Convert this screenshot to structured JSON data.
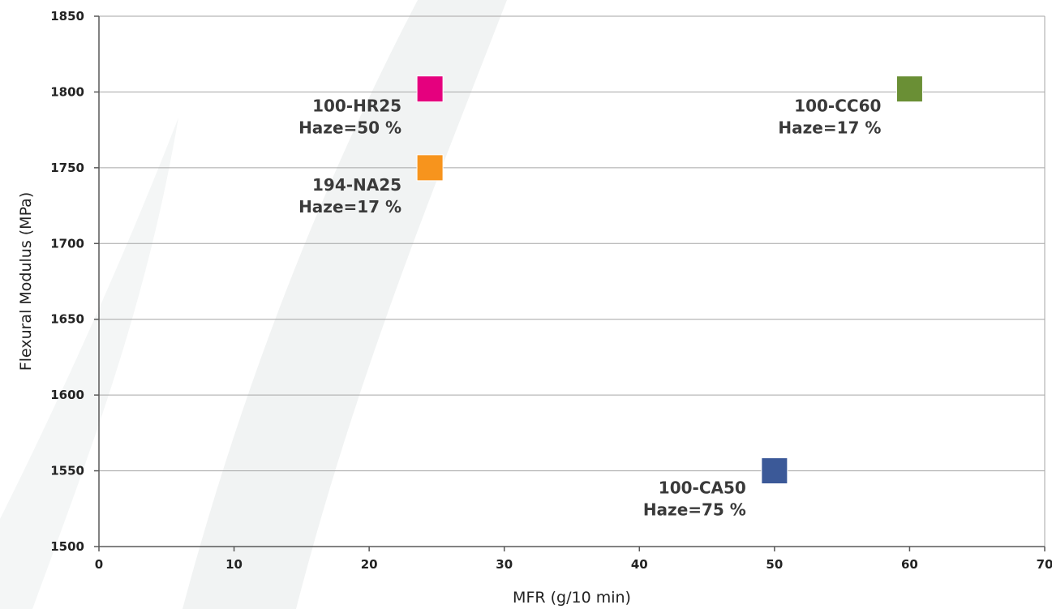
{
  "chart_data": {
    "type": "scatter",
    "title": "",
    "xlabel": "MFR (g/10 min)",
    "ylabel": "Flexural Modulus (MPa)",
    "xlim": [
      0,
      70
    ],
    "ylim": [
      1500,
      1850
    ],
    "xticks": [
      0,
      10,
      20,
      30,
      40,
      50,
      60,
      70
    ],
    "yticks": [
      1500,
      1550,
      1600,
      1650,
      1700,
      1750,
      1800,
      1850
    ],
    "grid": "horizontal",
    "marker": "square",
    "points": [
      {
        "x": 24.5,
        "y": 1802,
        "name": "100-HR25",
        "haze": "Haze=50 %",
        "color": "#e5007e"
      },
      {
        "x": 24.5,
        "y": 1750,
        "name": "194-NA25",
        "haze": "Haze=17 %",
        "color": "#f7941d"
      },
      {
        "x": 60,
        "y": 1802,
        "name": "100-CC60",
        "haze": "Haze=17 %",
        "color": "#6a8f35"
      },
      {
        "x": 50,
        "y": 1550,
        "name": "100-CA50",
        "haze": "Haze=75 %",
        "color": "#3b5998"
      }
    ]
  }
}
